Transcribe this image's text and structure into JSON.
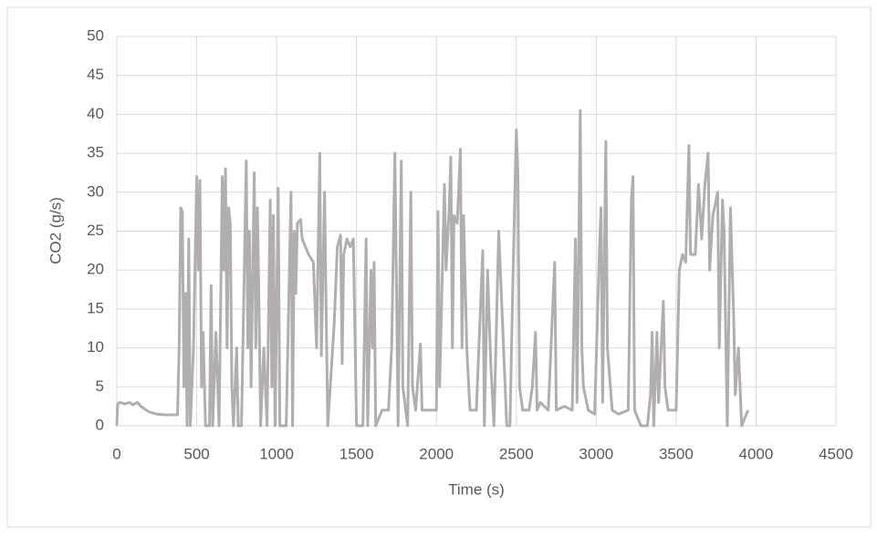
{
  "chart_data": {
    "type": "line",
    "x_label": "Time (s)",
    "y_label": "CO2 (g/s)",
    "x": [
      0,
      5,
      20,
      50,
      80,
      100,
      130,
      150,
      200,
      250,
      300,
      380,
      390,
      400,
      410,
      420,
      430,
      440,
      450,
      460,
      480,
      500,
      510,
      520,
      530,
      540,
      555,
      580,
      590,
      600,
      620,
      640,
      660,
      670,
      680,
      690,
      700,
      710,
      720,
      730,
      750,
      760,
      780,
      810,
      820,
      830,
      840,
      860,
      870,
      880,
      890,
      900,
      920,
      940,
      960,
      970,
      980,
      990,
      1010,
      1020,
      1060,
      1090,
      1100,
      1110,
      1120,
      1130,
      1150,
      1160,
      1200,
      1230,
      1250,
      1270,
      1280,
      1300,
      1320,
      1360,
      1380,
      1400,
      1410,
      1420,
      1440,
      1460,
      1480,
      1500,
      1540,
      1560,
      1570,
      1590,
      1600,
      1610,
      1620,
      1660,
      1700,
      1720,
      1740,
      1750,
      1760,
      1780,
      1790,
      1820,
      1840,
      1850,
      1870,
      1900,
      1910,
      1960,
      2000,
      2010,
      2020,
      2050,
      2060,
      2080,
      2090,
      2100,
      2110,
      2130,
      2150,
      2160,
      2170,
      2190,
      2210,
      2250,
      2290,
      2300,
      2320,
      2340,
      2360,
      2390,
      2400,
      2420,
      2440,
      2460,
      2480,
      2500,
      2510,
      2520,
      2540,
      2580,
      2600,
      2620,
      2630,
      2650,
      2700,
      2740,
      2750,
      2800,
      2850,
      2870,
      2880,
      2900,
      2910,
      2920,
      2950,
      2990,
      3020,
      3030,
      3040,
      3060,
      3070,
      3100,
      3140,
      3200,
      3220,
      3230,
      3240,
      3280,
      3320,
      3340,
      3350,
      3360,
      3380,
      3390,
      3420,
      3430,
      3450,
      3500,
      3520,
      3540,
      3560,
      3580,
      3590,
      3620,
      3640,
      3660,
      3680,
      3700,
      3710,
      3730,
      3760,
      3770,
      3790,
      3800,
      3820,
      3840,
      3860,
      3870,
      3890,
      3910,
      3950
    ],
    "series": [
      {
        "name": "CO2",
        "color": "#b3aeae",
        "values": [
          0,
          2.8,
          3,
          2.8,
          3,
          2.7,
          3,
          2.5,
          1.8,
          1.5,
          1.4,
          1.4,
          10,
          28,
          27.5,
          5,
          17,
          0,
          24,
          0,
          10,
          32,
          20,
          31.5,
          5,
          12,
          0,
          0,
          18,
          0,
          12,
          0,
          32,
          20,
          33,
          10,
          28,
          26,
          5,
          0,
          10,
          0,
          0,
          34,
          10,
          25,
          5,
          32.5,
          10,
          28,
          15,
          0,
          10,
          0,
          29,
          5,
          27,
          0,
          30.5,
          0,
          0,
          30,
          0,
          25,
          17,
          26,
          26.5,
          24,
          22,
          21,
          10,
          35,
          9,
          30,
          0,
          13,
          23,
          24.5,
          8,
          22,
          24,
          23,
          24,
          0,
          0,
          24,
          0,
          20,
          10,
          21,
          0,
          2,
          2,
          10,
          35,
          18,
          0,
          34,
          5,
          0,
          30,
          5,
          2,
          10.5,
          2,
          2,
          2,
          27.5,
          5,
          31,
          20,
          28,
          34.5,
          10,
          27,
          26,
          35.5,
          10,
          27,
          10,
          2,
          2,
          22.5,
          0,
          20,
          8,
          0,
          25,
          20,
          10,
          0,
          0,
          20,
          38,
          32,
          5,
          2,
          2,
          5,
          12,
          2,
          3,
          2,
          21,
          2,
          2.5,
          2,
          24,
          3,
          40.5,
          10,
          5,
          2,
          1.5,
          22.5,
          28,
          3,
          36.5,
          10,
          2,
          1.5,
          2,
          29,
          32,
          2,
          0,
          0,
          4,
          12,
          0,
          12,
          3,
          16,
          5,
          2,
          2,
          20,
          22,
          21,
          36,
          22,
          22,
          31,
          24,
          31,
          35,
          20,
          27,
          30,
          10,
          29,
          25,
          0,
          28,
          14,
          4,
          10,
          0,
          2
        ]
      }
    ],
    "xlim": [
      0,
      4500
    ],
    "xticks": [
      0,
      500,
      1000,
      1500,
      2000,
      2500,
      3000,
      3500,
      4000,
      4500
    ],
    "ylim": [
      0,
      50
    ],
    "yticks": [
      0,
      5,
      10,
      15,
      20,
      25,
      30,
      35,
      40,
      45,
      50
    ],
    "grid": true
  }
}
